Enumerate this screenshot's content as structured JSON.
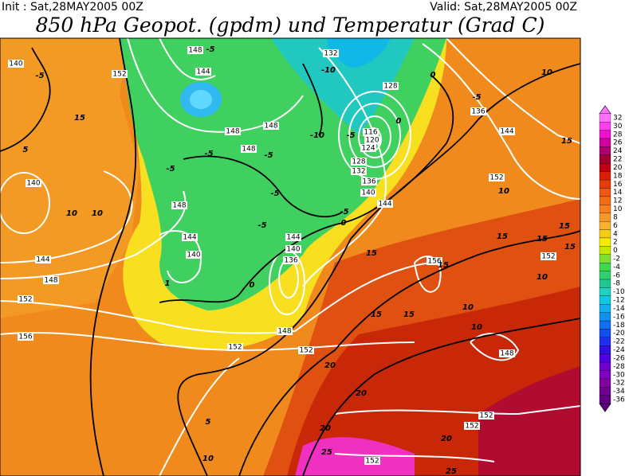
{
  "header": {
    "init": "Init : Sat,28MAY2005 00Z",
    "valid": "Valid: Sat,28MAY2005 00Z",
    "title": "850 hPa Geopot. (gpdm) und Temperatur (Grad C)"
  },
  "colorbar": {
    "labels": [
      "32",
      "30",
      "28",
      "26",
      "24",
      "22",
      "20",
      "18",
      "16",
      "14",
      "12",
      "10",
      "8",
      "6",
      "4",
      "2",
      "0",
      "-2",
      "-4",
      "-6",
      "-8",
      "-10",
      "-12",
      "-14",
      "-16",
      "-18",
      "-20",
      "-22",
      "-24",
      "-26",
      "-28",
      "-30",
      "-32",
      "-34",
      "-36"
    ],
    "colors": [
      "#ff70ff",
      "#ff40f0",
      "#f010d0",
      "#d000a0",
      "#b00070",
      "#a00030",
      "#c00010",
      "#d82000",
      "#e83c08",
      "#f05810",
      "#f46c14",
      "#f8801c",
      "#f89828",
      "#f8b030",
      "#f8cc10",
      "#f8ec00",
      "#c8e800",
      "#80e030",
      "#40d850",
      "#30d070",
      "#20c890",
      "#20d0c0",
      "#10c8e0",
      "#10b0f0",
      "#1090f0",
      "#1070f0",
      "#1050f0",
      "#2030f0",
      "#3010e0",
      "#5000e0",
      "#7000d0",
      "#8000c0",
      "#8000a0",
      "#700090",
      "#600080"
    ]
  },
  "height_labels": [
    "140",
    "152",
    "148",
    "144",
    "132",
    "128",
    "136",
    "144",
    "148",
    "148",
    "148",
    "116",
    "120",
    "124",
    "128",
    "132",
    "136",
    "140",
    "144",
    "152",
    "140",
    "148",
    "144",
    "140",
    "144",
    "140",
    "136",
    "156",
    "152",
    "144",
    "148",
    "152",
    "156",
    "148",
    "152",
    "152",
    "148",
    "152",
    "152",
    "152"
  ],
  "temperature_labels": [
    "-5",
    "-5",
    "-10",
    "0",
    "-5",
    "10",
    "15",
    "5",
    "-5",
    "-5",
    "-10",
    "-5",
    "0",
    "-5",
    "15",
    "10",
    "10",
    "10",
    "-5",
    "-5",
    "0",
    "-5",
    "15",
    "15",
    "15",
    "15",
    "15",
    "0",
    "1",
    "15",
    "10",
    "15",
    "15",
    "10",
    "10",
    "20",
    "20",
    "20",
    "20",
    "25",
    "25",
    "5",
    "10"
  ]
}
